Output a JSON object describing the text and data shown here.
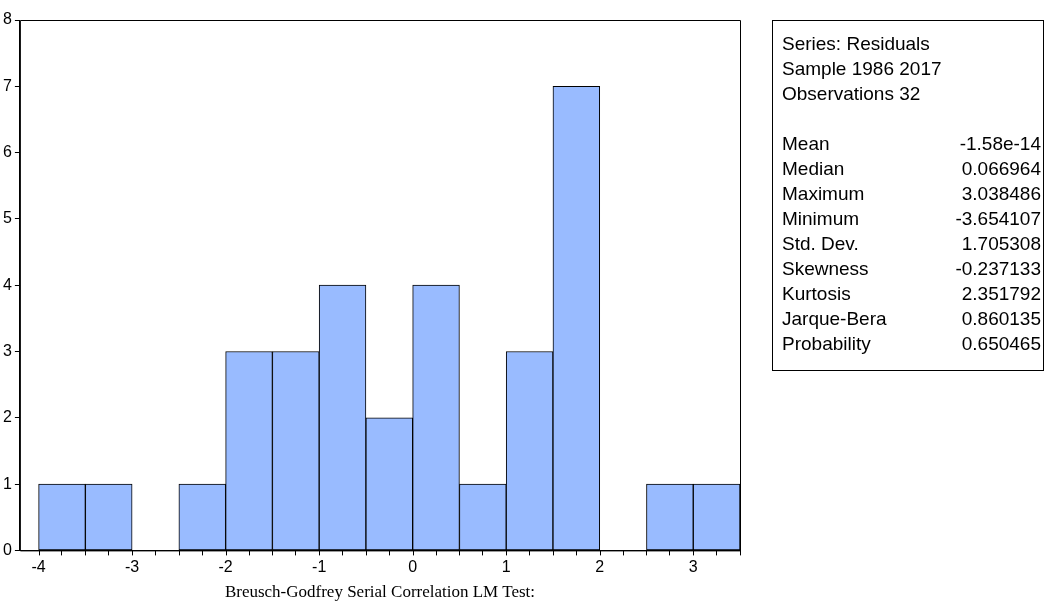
{
  "chart_data": [
    {
      "type": "histogram",
      "xlabel": "Breusch-Godfrey Serial Correlation LM Test:",
      "bins": [
        -4,
        -3.5,
        -3,
        -2.5,
        -2,
        -1.5,
        -1,
        -0.5,
        0,
        0.5,
        1,
        1.5,
        2,
        2.5,
        3,
        3.5
      ],
      "values": [
        1,
        1,
        0,
        1,
        3,
        3,
        4,
        2,
        4,
        1,
        3,
        7,
        0,
        1,
        1
      ],
      "color": "#99bbff",
      "xlim": [
        -4.2,
        3.5
      ],
      "xticks": [
        -4,
        {
          "value": -3.5,
          "label": null
        },
        -3,
        {
          "value": -2.5,
          "label": null
        },
        -2,
        {
          "value": -1.5,
          "label": null
        },
        -1,
        {
          "value": -0.5,
          "label": null
        },
        0,
        {
          "value": 0.5,
          "label": null
        },
        1,
        {
          "value": 1.5,
          "label": null
        },
        2,
        {
          "value": 2.5,
          "label": null
        },
        3,
        {
          "value": 3.5,
          "label": null
        }
      ],
      "ylim": [
        0,
        8
      ],
      "yticks": [
        0,
        1,
        2,
        3,
        4,
        5,
        6,
        7,
        8
      ],
      "grid": false,
      "legend": false
    },
    {
      "type": "other",
      "annotations": [
        "Series: Residuals",
        "Sample 1986 2017",
        "Observations 32",
        "Mean\t-1.58e-14",
        "Median\t0.066964",
        "Maximum\t3.038486",
        "Minimum\t-3.654107",
        "Std. Dev.\t1.705308",
        "Skewness\t-0.237133",
        "Kurtosis\t2.351792",
        "Jarque-Bera\t0.860135",
        "Probability\t0.650465"
      ]
    }
  ]
}
